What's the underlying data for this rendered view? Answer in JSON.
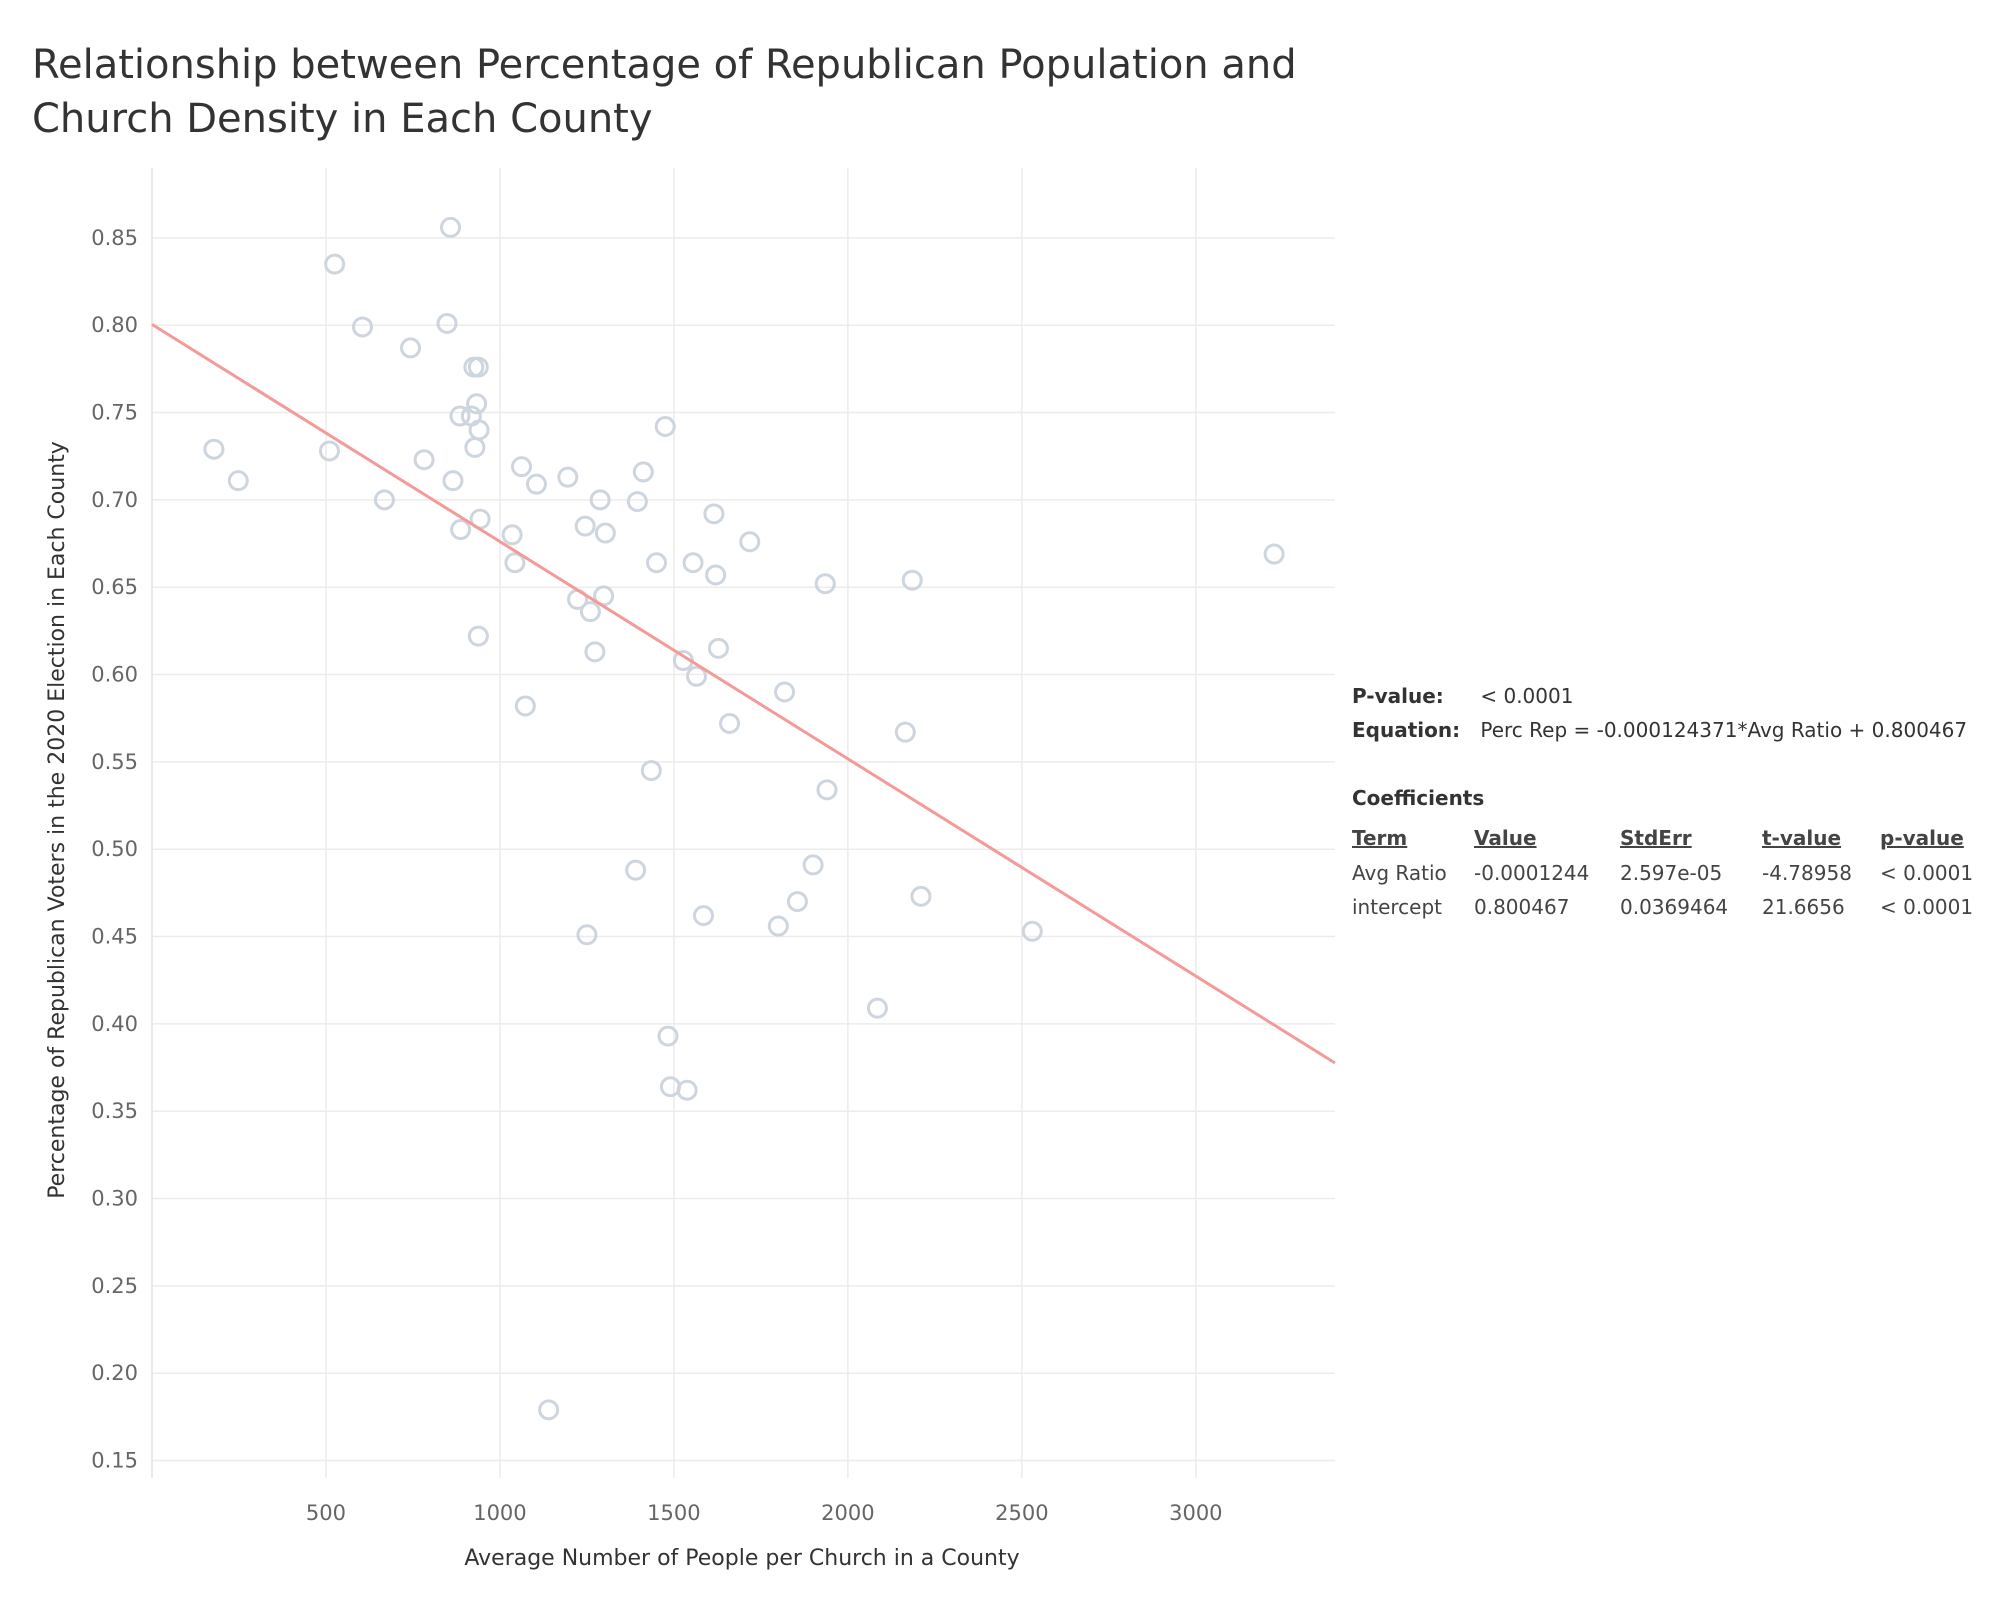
{
  "chart_data": {
    "type": "scatter",
    "title": "Relationship between Percentage of Republican Population and Church Density in Each County",
    "xlabel": "Average Number of People per Church in a County",
    "ylabel": "Percentage of Republican Voters in the 2020 Election in Each County",
    "xlim": [
      0,
      3400
    ],
    "ylim": [
      0.14,
      0.89
    ],
    "xticks": [
      "500",
      "1000",
      "1500",
      "2000",
      "2500",
      "3000"
    ],
    "xtick_values": [
      500,
      1000,
      1500,
      2000,
      2500,
      3000
    ],
    "yticks": [
      "0.85",
      "0.80",
      "0.75",
      "0.70",
      "0.65",
      "0.60",
      "0.55",
      "0.50",
      "0.45",
      "0.40",
      "0.35",
      "0.30",
      "0.25",
      "0.20",
      "0.15"
    ],
    "ytick_values": [
      0.85,
      0.8,
      0.75,
      0.7,
      0.65,
      0.6,
      0.55,
      0.5,
      0.45,
      0.4,
      0.35,
      0.3,
      0.25,
      0.2,
      0.15
    ],
    "grid": true,
    "marker_color": "#cdd5de",
    "trend_color": "#f49a99",
    "trend_line": {
      "slope": -0.000124371,
      "intercept": 0.800467
    },
    "points": [
      {
        "x": 178,
        "y": 0.729
      },
      {
        "x": 248,
        "y": 0.711
      },
      {
        "x": 510,
        "y": 0.728
      },
      {
        "x": 525,
        "y": 0.835
      },
      {
        "x": 605,
        "y": 0.799
      },
      {
        "x": 668,
        "y": 0.7
      },
      {
        "x": 743,
        "y": 0.787
      },
      {
        "x": 782,
        "y": 0.723
      },
      {
        "x": 848,
        "y": 0.801
      },
      {
        "x": 858,
        "y": 0.856
      },
      {
        "x": 865,
        "y": 0.711
      },
      {
        "x": 885,
        "y": 0.748
      },
      {
        "x": 887,
        "y": 0.683
      },
      {
        "x": 918,
        "y": 0.748
      },
      {
        "x": 925,
        "y": 0.776
      },
      {
        "x": 928,
        "y": 0.73
      },
      {
        "x": 933,
        "y": 0.755
      },
      {
        "x": 938,
        "y": 0.776
      },
      {
        "x": 938,
        "y": 0.622
      },
      {
        "x": 940,
        "y": 0.74
      },
      {
        "x": 943,
        "y": 0.689
      },
      {
        "x": 1035,
        "y": 0.68
      },
      {
        "x": 1043,
        "y": 0.664
      },
      {
        "x": 1062,
        "y": 0.719
      },
      {
        "x": 1073,
        "y": 0.582
      },
      {
        "x": 1105,
        "y": 0.709
      },
      {
        "x": 1140,
        "y": 0.179
      },
      {
        "x": 1195,
        "y": 0.713
      },
      {
        "x": 1223,
        "y": 0.643
      },
      {
        "x": 1245,
        "y": 0.685
      },
      {
        "x": 1250,
        "y": 0.451
      },
      {
        "x": 1260,
        "y": 0.636
      },
      {
        "x": 1273,
        "y": 0.613
      },
      {
        "x": 1288,
        "y": 0.7
      },
      {
        "x": 1298,
        "y": 0.645
      },
      {
        "x": 1303,
        "y": 0.681
      },
      {
        "x": 1390,
        "y": 0.488
      },
      {
        "x": 1395,
        "y": 0.699
      },
      {
        "x": 1412,
        "y": 0.716
      },
      {
        "x": 1435,
        "y": 0.545
      },
      {
        "x": 1450,
        "y": 0.664
      },
      {
        "x": 1475,
        "y": 0.742
      },
      {
        "x": 1483,
        "y": 0.393
      },
      {
        "x": 1490,
        "y": 0.364
      },
      {
        "x": 1527,
        "y": 0.608
      },
      {
        "x": 1538,
        "y": 0.362
      },
      {
        "x": 1555,
        "y": 0.664
      },
      {
        "x": 1565,
        "y": 0.599
      },
      {
        "x": 1585,
        "y": 0.462
      },
      {
        "x": 1615,
        "y": 0.692
      },
      {
        "x": 1620,
        "y": 0.657
      },
      {
        "x": 1628,
        "y": 0.615
      },
      {
        "x": 1660,
        "y": 0.572
      },
      {
        "x": 1718,
        "y": 0.676
      },
      {
        "x": 1800,
        "y": 0.456
      },
      {
        "x": 1818,
        "y": 0.59
      },
      {
        "x": 1855,
        "y": 0.47
      },
      {
        "x": 1900,
        "y": 0.491
      },
      {
        "x": 1935,
        "y": 0.652
      },
      {
        "x": 1940,
        "y": 0.534
      },
      {
        "x": 2085,
        "y": 0.409
      },
      {
        "x": 2165,
        "y": 0.567
      },
      {
        "x": 2185,
        "y": 0.654
      },
      {
        "x": 2210,
        "y": 0.473
      },
      {
        "x": 2530,
        "y": 0.453
      },
      {
        "x": 3225,
        "y": 0.669
      }
    ]
  },
  "stats": {
    "pvalue_label": "P-value:",
    "pvalue": "< 0.0001",
    "equation_label": "Equation:",
    "equation": "Perc Rep = -0.000124371*Avg Ratio + 0.800467",
    "coefficients_title": "Coefficients",
    "columns": [
      "Term",
      "Value",
      "StdErr",
      "t-value",
      "p-value"
    ],
    "rows": [
      {
        "term": "Avg Ratio",
        "value": "-0.0001244",
        "stderr": "2.597e-05",
        "tvalue": "-4.78958",
        "pvalue": "< 0.0001"
      },
      {
        "term": "intercept",
        "value": "0.800467",
        "stderr": "0.0369464",
        "tvalue": "21.6656",
        "pvalue": "< 0.0001"
      }
    ]
  }
}
